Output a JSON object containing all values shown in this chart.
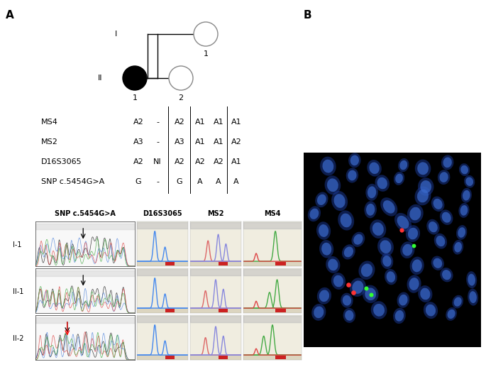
{
  "fig_width": 6.85,
  "fig_height": 5.17,
  "background_color": "#ffffff",
  "label_A": "A",
  "label_B": "B",
  "pedigree": {
    "gen_I_label": "I",
    "gen_II_label": "II",
    "gen_I_1_label": "1",
    "gen_II_1_label": "1",
    "gen_II_2_label": "2"
  },
  "table_rows": [
    {
      "marker": "MS4",
      "II1": "A2",
      "blank": "-",
      "II2": "A2",
      "c1": "A1",
      "c2": "A1",
      "c3": "A1"
    },
    {
      "marker": "MS2",
      "II1": "A3",
      "blank": "-",
      "II2": "A3",
      "c1": "A1",
      "c2": "A1",
      "c3": "A2"
    },
    {
      "marker": "D16S3065",
      "II1": "A2",
      "blank": "NI",
      "II2": "A2",
      "c1": "A2",
      "c2": "A2",
      "c3": "A1"
    },
    {
      "marker": "SNP c.5454G>A",
      "II1": "G",
      "blank": "-",
      "II2": "G",
      "c1": "A",
      "c2": "A",
      "c3": "A"
    }
  ],
  "chromatogram_labels": {
    "col1": "SNP c.5454G>A",
    "col2": "D16S3065",
    "col3": "MS2",
    "col4": "MS4"
  },
  "row_labels": [
    "I-1",
    "II-1",
    "II-2"
  ]
}
